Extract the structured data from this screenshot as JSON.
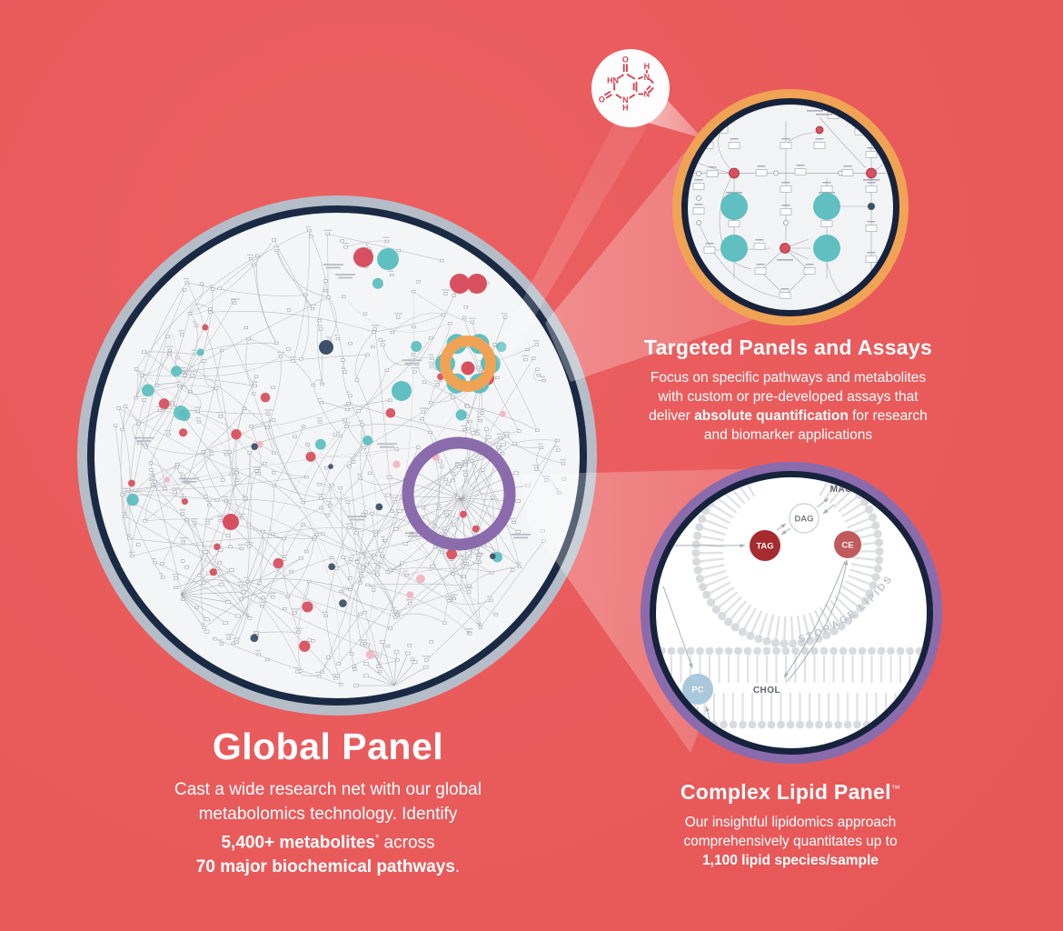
{
  "colors": {
    "background": "#E95A5B",
    "navy_ring": "#17233C",
    "gray_ring": "#B5BEC8",
    "orange": "#F0A355",
    "purple": "#8A6CAD",
    "teal": "#5FBFC1",
    "red_node": "#D8505F",
    "pink_node": "#F0B6BE",
    "dark_navy_node": "#3C5068",
    "panel_bg": "#F4F5F6",
    "tag_red": "#A62B2E",
    "ce_red": "#C05A5C",
    "pc_blue": "#A9C8DB",
    "molecule_red": "#D4424E"
  },
  "global_panel": {
    "title": "Global Panel",
    "line1": "Cast a wide research net with our global",
    "line2": "metabolomics technology. Identify",
    "line3_bold": "5,400+ metabolites",
    "line3_asterisk": "*",
    "line3_rest": " across",
    "line4_bold": "70 major biochemical pathways",
    "line4_rest": "."
  },
  "targeted_panel": {
    "title": "Targeted Panels and Assays",
    "line1": "Focus on specific pathways and metabolites",
    "line2": "with custom or pre-developed assays that",
    "line3_pre": "deliver ",
    "line3_bold": "absolute quantification",
    "line3_post": " for research",
    "line4": "and biomarker applications"
  },
  "lipid_panel": {
    "title": "Complex Lipid Panel",
    "trademark": "™",
    "line1": "Our insightful lipidomics approach",
    "line2": "comprehensively quantitates up to",
    "line3_bold": "1,100 lipid species/sample",
    "labels": {
      "mag": "MAG",
      "dag": "DAG",
      "tag": "TAG",
      "ce": "CE",
      "pc": "PC",
      "chol": "CHOL",
      "storage": "STORAGE LIPIDS"
    }
  },
  "molecule": {
    "icon": "xanthine-structure"
  }
}
